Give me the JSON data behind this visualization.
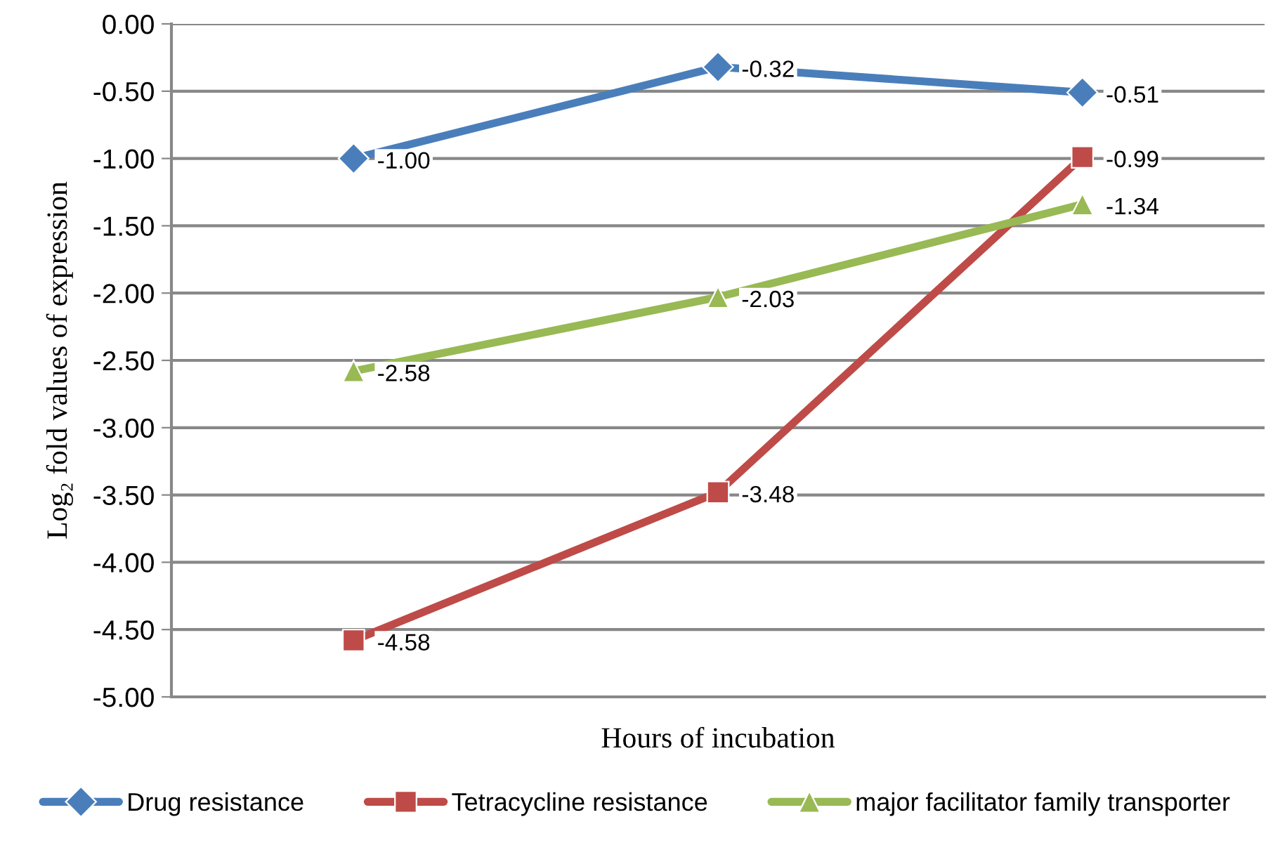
{
  "chart_data": {
    "type": "line",
    "xlabel": "Hours of incubation",
    "ylabel": "Log₂ fold values of expression",
    "categories": [
      null,
      null,
      null
    ],
    "series": [
      {
        "name": "Drug resistance",
        "color": "#4a7ebb",
        "marker": "diamond",
        "values": [
          -1.0,
          -0.32,
          -0.51
        ],
        "value_labels": [
          "-1.00",
          "-0.32",
          "-0.51"
        ]
      },
      {
        "name": "Tetracycline resistance",
        "color": "#be4b48",
        "marker": "square",
        "values": [
          -4.58,
          -3.48,
          -0.99
        ],
        "value_labels": [
          "-4.58",
          "-3.48",
          "-0.99"
        ]
      },
      {
        "name": "major facilitator family transporter",
        "color": "#98b954",
        "marker": "triangle",
        "values": [
          -2.58,
          -2.03,
          -1.34
        ],
        "value_labels": [
          "-2.58",
          "-2.03",
          "-1.34"
        ]
      }
    ],
    "ylim": [
      -5,
      0
    ],
    "yticks": [
      {
        "value": 0,
        "label": "0.00"
      },
      {
        "value": -0.5,
        "label": "-0.50"
      },
      {
        "value": -1,
        "label": "-1.00"
      },
      {
        "value": -1.5,
        "label": "-1.50"
      },
      {
        "value": -2,
        "label": "-2.00"
      },
      {
        "value": -2.5,
        "label": "-2.50"
      },
      {
        "value": -3,
        "label": "-3.00"
      },
      {
        "value": -3.5,
        "label": "-3.50"
      },
      {
        "value": -4,
        "label": "-4.00"
      },
      {
        "value": -4.5,
        "label": "-4.50"
      },
      {
        "value": -5,
        "label": "-5.00"
      }
    ],
    "grid": "y",
    "legend": "bottom"
  }
}
